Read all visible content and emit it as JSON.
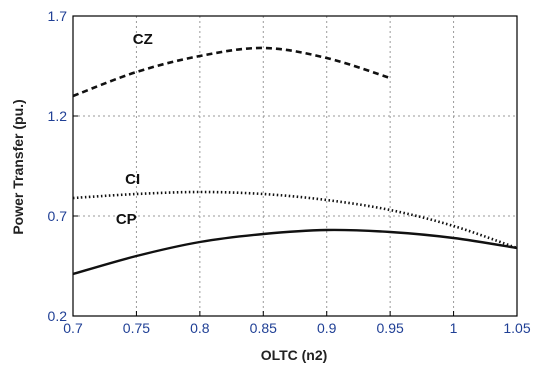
{
  "chart_data": {
    "type": "line",
    "title": "",
    "xlabel": "OLTC (n2)",
    "ylabel": "Power Transfer (pu.)",
    "xlim": [
      0.7,
      1.05
    ],
    "ylim": [
      0.2,
      1.7
    ],
    "x_ticks": [
      "0.7",
      "0.75",
      "0.8",
      "0.85",
      "0.9",
      "0.95",
      "1",
      "1.05"
    ],
    "y_ticks": [
      "0.2",
      "0.7",
      "1.2",
      "1.7"
    ],
    "grid": "dashed, both axes",
    "series": [
      {
        "name": "CZ",
        "line_style": "dashed",
        "color": "#111111",
        "x": [
          0.7,
          0.75,
          0.8,
          0.85,
          0.9,
          0.95
        ],
        "y": [
          1.3,
          1.42,
          1.5,
          1.54,
          1.49,
          1.39
        ]
      },
      {
        "name": "CI",
        "line_style": "dotted",
        "color": "#111111",
        "x": [
          0.7,
          0.75,
          0.8,
          0.85,
          0.9,
          0.95,
          1.0,
          1.05
        ],
        "y": [
          0.79,
          0.81,
          0.82,
          0.81,
          0.78,
          0.73,
          0.65,
          0.54
        ]
      },
      {
        "name": "CP",
        "line_style": "solid",
        "color": "#111111",
        "x": [
          0.7,
          0.75,
          0.8,
          0.85,
          0.9,
          0.95,
          1.0,
          1.05
        ],
        "y": [
          0.41,
          0.5,
          0.57,
          0.61,
          0.63,
          0.62,
          0.59,
          0.54
        ]
      }
    ]
  }
}
